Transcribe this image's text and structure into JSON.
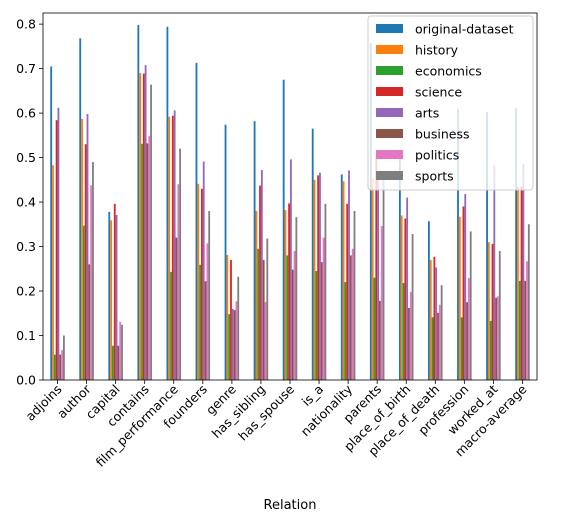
{
  "chart_data": {
    "type": "bar",
    "xlabel": "Relation",
    "ylabel": "",
    "title": "",
    "ylim": [
      0,
      0.825
    ],
    "yticks": [
      0.0,
      0.1,
      0.2,
      0.3,
      0.4,
      0.5,
      0.6,
      0.7,
      0.8
    ],
    "ytick_labels": [
      "0.0",
      "0.1",
      "0.2",
      "0.3",
      "0.4",
      "0.5",
      "0.6",
      "0.7",
      "0.8"
    ],
    "legend_position": "top-right",
    "grid": false,
    "categories": [
      "adjoins",
      "author",
      "capital",
      "contains",
      "film_performance",
      "founders",
      "genre",
      "has_sibling",
      "has_spouse",
      "is_a",
      "nationality",
      "parents",
      "place_of_birth",
      "place_of_death",
      "profession",
      "worked_at",
      "macro-average"
    ],
    "series": [
      {
        "name": "original-dataset",
        "color": "#1f77b4",
        "values": [
          0.705,
          0.768,
          0.378,
          0.798,
          0.794,
          0.713,
          0.574,
          0.582,
          0.675,
          0.565,
          0.462,
          0.757,
          0.499,
          0.357,
          0.609,
          0.602,
          0.611
        ]
      },
      {
        "name": "history",
        "color": "#ff7f0e",
        "values": [
          0.483,
          0.587,
          0.359,
          0.69,
          0.592,
          0.441,
          0.281,
          0.38,
          0.382,
          0.45,
          0.447,
          0.454,
          0.37,
          0.27,
          0.367,
          0.31,
          0.434
        ]
      },
      {
        "name": "economics",
        "color": "#2ca02c",
        "values": [
          0.057,
          0.347,
          0.077,
          0.531,
          0.243,
          0.259,
          0.148,
          0.295,
          0.28,
          0.245,
          0.22,
          0.23,
          0.218,
          0.141,
          0.141,
          0.133,
          0.223
        ]
      },
      {
        "name": "science",
        "color": "#d62728",
        "values": [
          0.584,
          0.53,
          0.396,
          0.689,
          0.594,
          0.43,
          0.27,
          0.437,
          0.397,
          0.46,
          0.396,
          0.505,
          0.363,
          0.277,
          0.39,
          0.306,
          0.435
        ]
      },
      {
        "name": "arts",
        "color": "#9467bd",
        "values": [
          0.612,
          0.598,
          0.371,
          0.708,
          0.606,
          0.491,
          0.16,
          0.472,
          0.496,
          0.466,
          0.471,
          0.45,
          0.41,
          0.253,
          0.418,
          0.482,
          0.486
        ]
      },
      {
        "name": "business",
        "color": "#8c564b",
        "values": [
          0.057,
          0.26,
          0.077,
          0.532,
          0.32,
          0.222,
          0.157,
          0.27,
          0.248,
          0.265,
          0.28,
          0.178,
          0.162,
          0.151,
          0.175,
          0.185,
          0.223
        ]
      },
      {
        "name": "politics",
        "color": "#e377c2",
        "values": [
          0.067,
          0.438,
          0.131,
          0.549,
          0.44,
          0.307,
          0.177,
          0.175,
          0.29,
          0.32,
          0.295,
          0.346,
          0.198,
          0.169,
          0.229,
          0.188,
          0.267
        ]
      },
      {
        "name": "sports",
        "color": "#7f7f7f",
        "values": [
          0.1,
          0.49,
          0.124,
          0.664,
          0.52,
          0.38,
          0.232,
          0.318,
          0.366,
          0.396,
          0.38,
          0.454,
          0.328,
          0.213,
          0.334,
          0.29,
          0.35
        ]
      }
    ]
  }
}
